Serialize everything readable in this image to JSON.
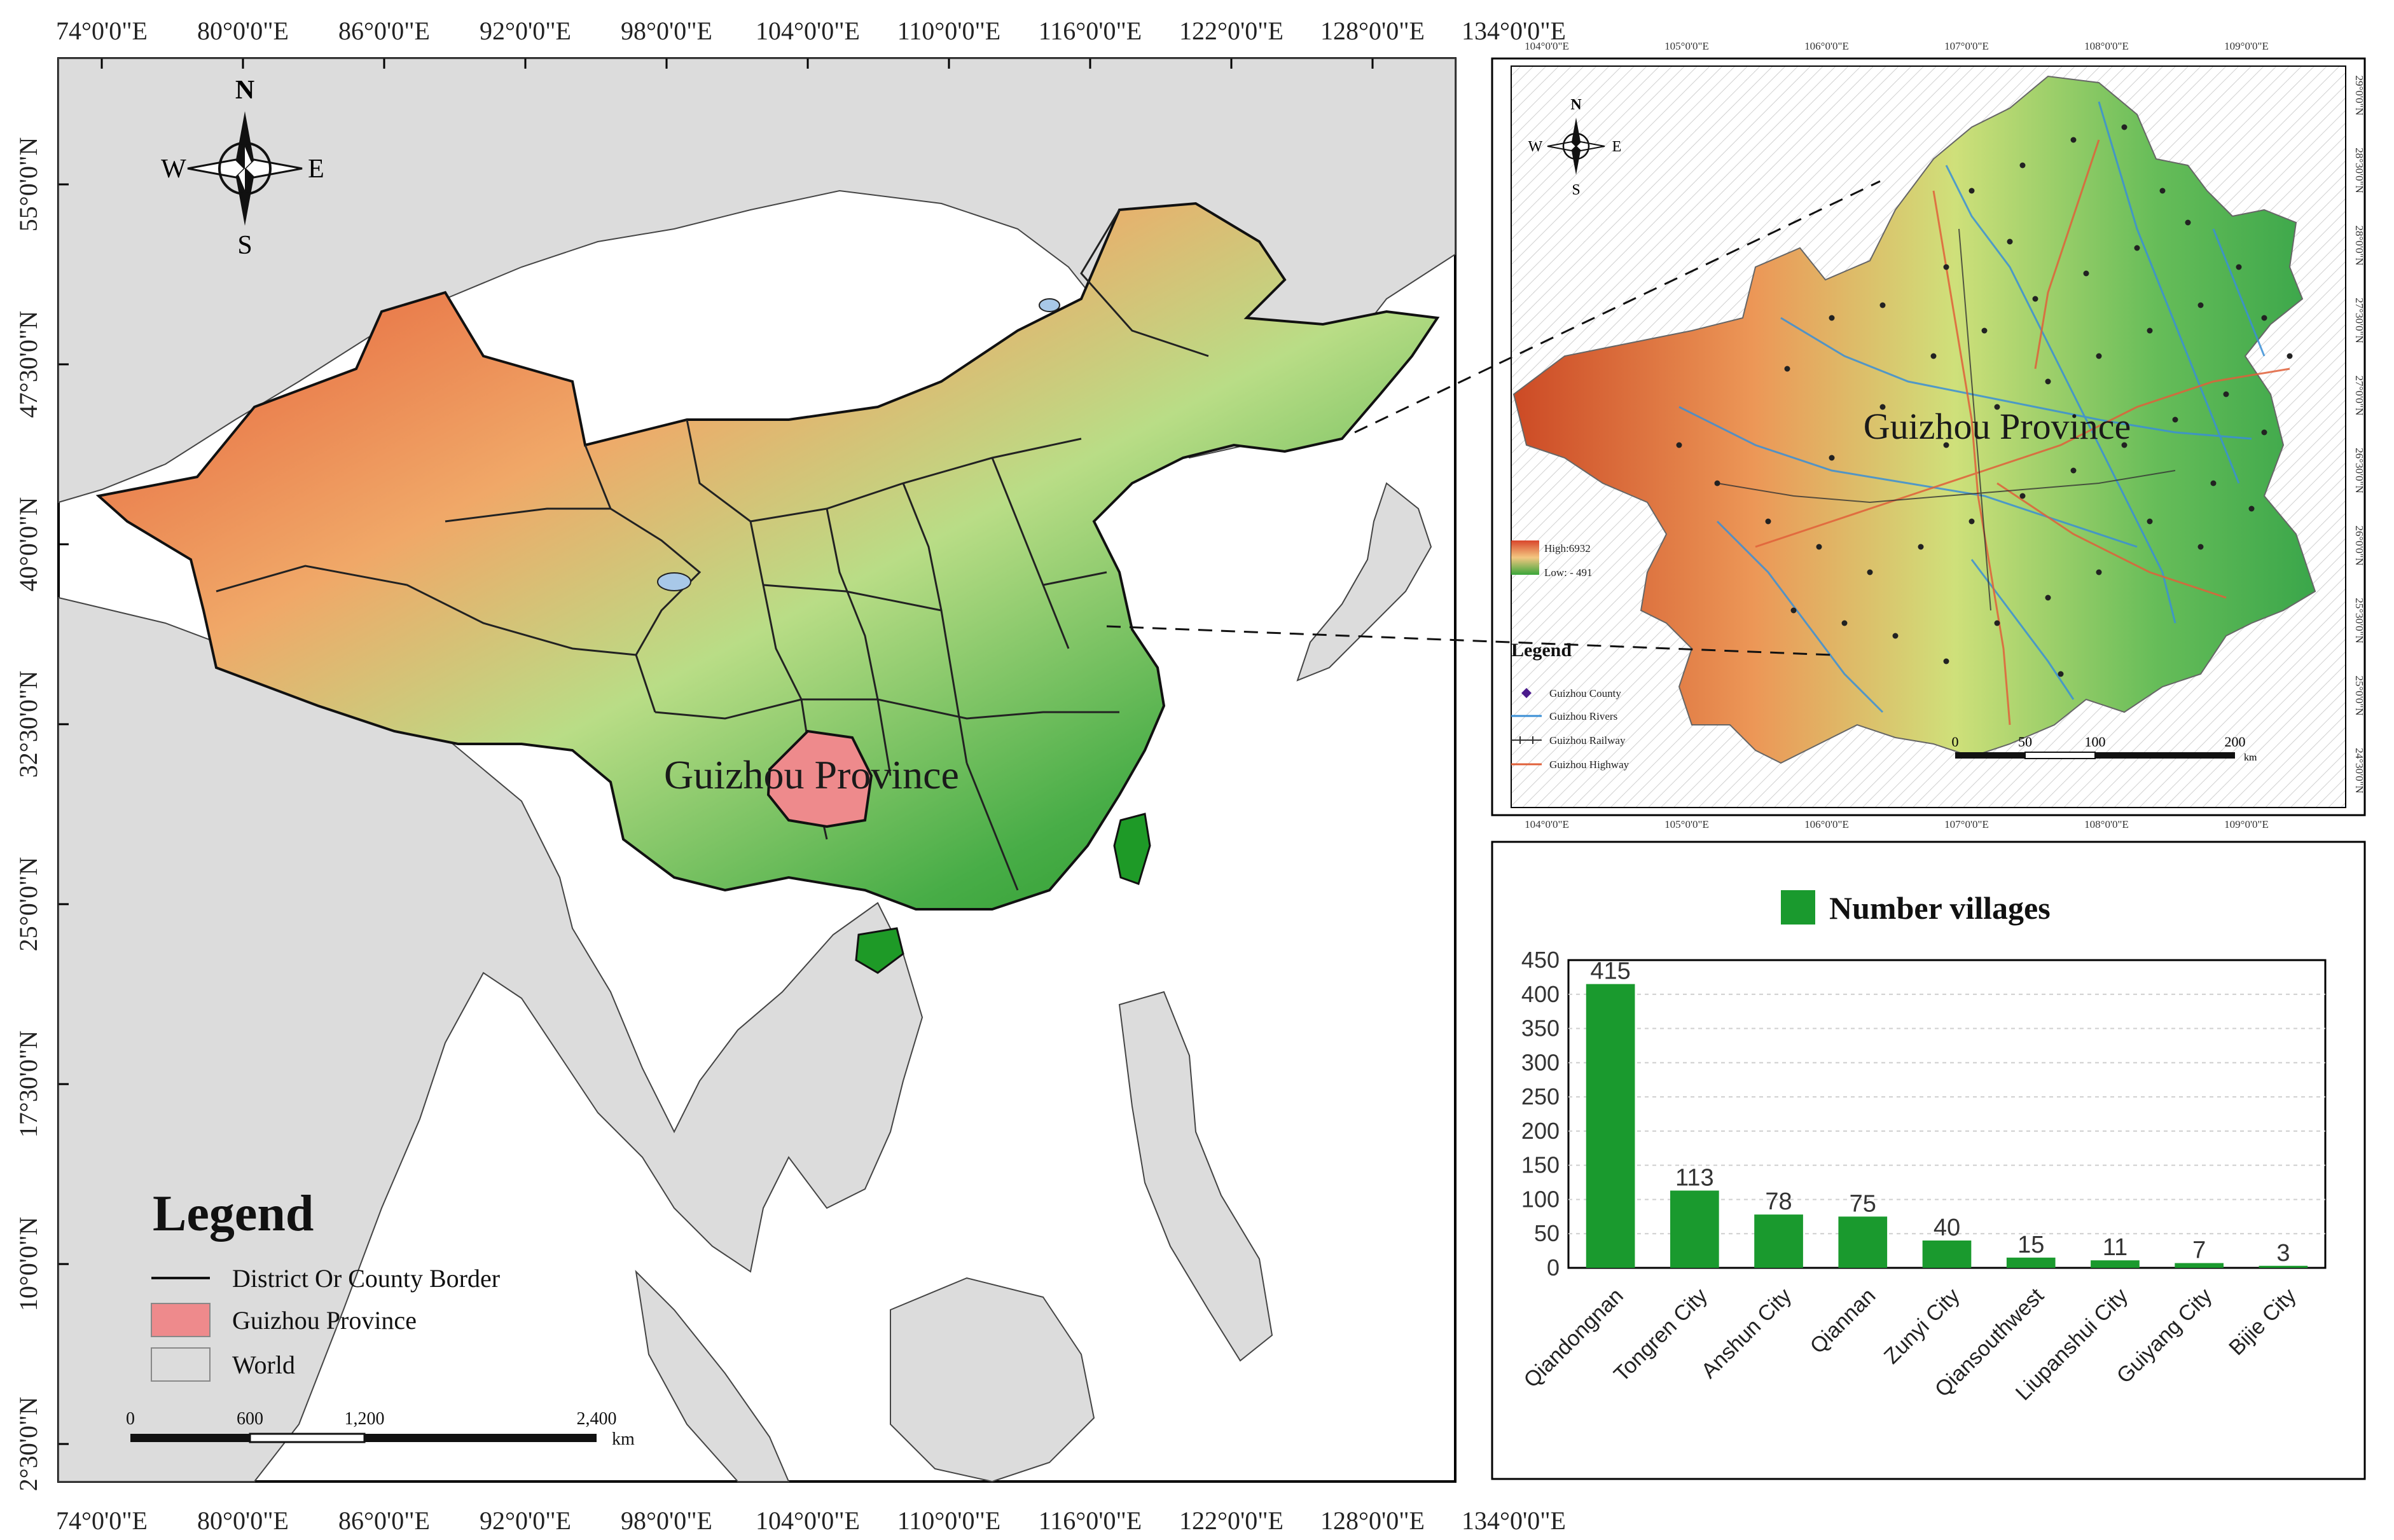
{
  "main_map": {
    "lon_labels": [
      "74°0'0\"E",
      "80°0'0\"E",
      "86°0'0\"E",
      "92°0'0\"E",
      "98°0'0\"E",
      "104°0'0\"E",
      "110°0'0\"E",
      "116°0'0\"E",
      "122°0'0\"E",
      "128°0'0\"E",
      "134°0'0\"E"
    ],
    "lat_labels": [
      "55°0'0\"N",
      "47°30'0\"N",
      "40°0'0\"N",
      "32°30'0\"N",
      "25°0'0\"N",
      "17°30'0\"N",
      "10°0'0\"N",
      "2°30'0\"N"
    ],
    "compass": {
      "n": "N",
      "s": "S",
      "e": "E",
      "w": "W"
    },
    "province_label": "Guizhou Province",
    "legend": {
      "title": "Legend",
      "items": [
        {
          "label": "District Or County Border",
          "symbol": "line"
        },
        {
          "label": "Guizhou Province",
          "symbol": "swatch",
          "color": "#ee8a8c"
        },
        {
          "label": "World",
          "symbol": "swatch",
          "color": "#dcdcdc"
        }
      ]
    },
    "scale": {
      "ticks": [
        "0",
        "600",
        "1,200",
        "2,400"
      ],
      "unit": "km"
    }
  },
  "inset_map": {
    "lon_labels": [
      "104°0'0\"E",
      "105°0'0\"E",
      "106°0'0\"E",
      "107°0'0\"E",
      "108°0'0\"E",
      "109°0'0\"E"
    ],
    "lat_labels": [
      "29°0'0\"N",
      "28°30'0\"N",
      "28°0'0\"N",
      "27°30'0\"N",
      "27°0'0\"N",
      "26°30'0\"N",
      "26°0'0\"N",
      "25°30'0\"N",
      "25°0'0\"N",
      "24°30'0\"N"
    ],
    "compass": {
      "n": "N",
      "s": "S",
      "e": "E",
      "w": "W"
    },
    "province_label": "Guizhou Province",
    "elevation": {
      "high": "High:6932",
      "low": "Low: - 491"
    },
    "legend": {
      "title": "Legend",
      "items": [
        {
          "label": "Guizhou County",
          "color": "#4b1a8c"
        },
        {
          "label": "Guizhou Rivers",
          "color": "#3a8fd6"
        },
        {
          "label": "Guizhou Railway",
          "color": "#333333"
        },
        {
          "label": "Guizhou Highway",
          "color": "#e0603a"
        }
      ]
    },
    "scale": {
      "ticks": [
        "0",
        "50",
        "100",
        "200"
      ],
      "unit": "km"
    }
  },
  "chart_data": {
    "type": "bar",
    "title": "",
    "series": [
      {
        "name": "Number villages",
        "color": "#1a9a2e",
        "values": [
          415,
          113,
          78,
          75,
          40,
          15,
          11,
          7,
          3
        ]
      }
    ],
    "categories": [
      "Qiandongnan",
      "Tongren City",
      "Anshun City",
      "Qiannan",
      "Zunyi City",
      "Qiansouthwest",
      "Liupanshui City",
      "Guiyang City",
      "Bijie City"
    ],
    "value_labels": [
      "415",
      "113",
      "78",
      "75",
      "40",
      "15",
      "11",
      "7",
      "3"
    ],
    "y_ticks": [
      "0",
      "50",
      "100",
      "150",
      "200",
      "250",
      "300",
      "350",
      "400",
      "450"
    ],
    "ylim": [
      0,
      450
    ],
    "grid": true,
    "legend_position": "top"
  }
}
